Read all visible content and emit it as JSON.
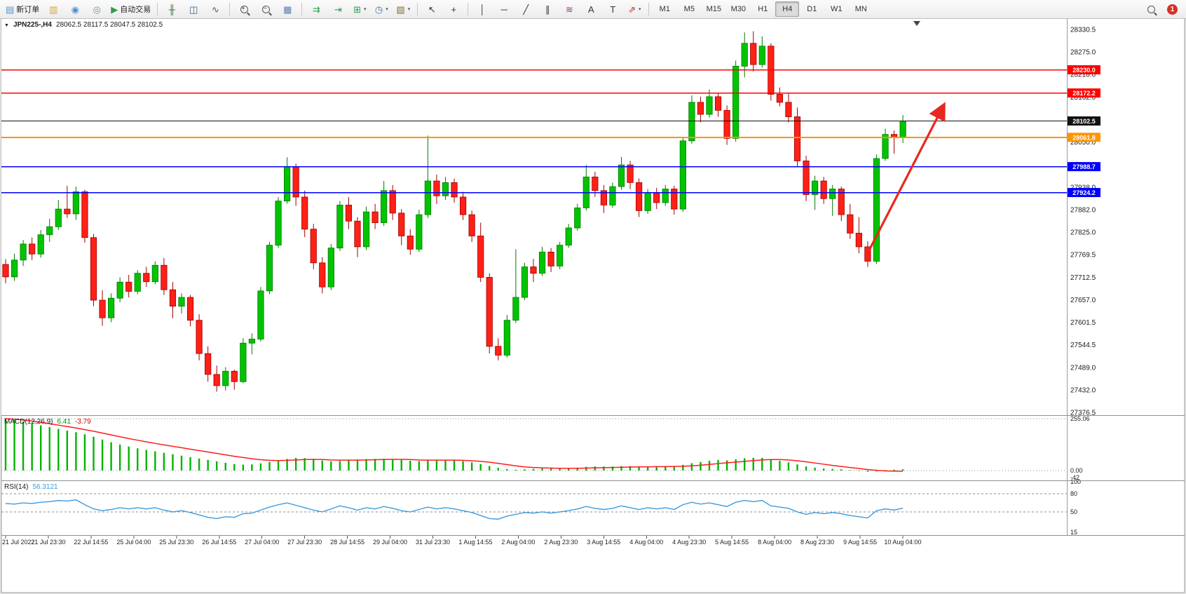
{
  "toolbar": {
    "groups": [
      {
        "name": "trade",
        "items": [
          {
            "name": "new-order",
            "glyph": "▤",
            "color": "#5b8fc9",
            "label": "新订单"
          },
          {
            "name": "charts",
            "glyph": "▥",
            "color": "#d9a43b"
          },
          {
            "name": "community",
            "glyph": "◉",
            "color": "#4a90d2"
          },
          {
            "name": "market-watch",
            "glyph": "◎",
            "color": "#7a8a99"
          },
          {
            "name": "autotrading",
            "glyph": "▶",
            "color": "#2e9e4f",
            "label": "自动交易"
          }
        ]
      },
      {
        "name": "chart-type",
        "items": [
          {
            "name": "bars-chart",
            "glyph": "╫",
            "color": "#3b6e3b"
          },
          {
            "name": "candlestick-chart",
            "glyph": "◫",
            "color": "#3b5b8a"
          },
          {
            "name": "line-chart",
            "glyph": "∿",
            "color": "#3b5b8a"
          }
        ]
      },
      {
        "name": "zoom",
        "items": [
          {
            "name": "zoom-in",
            "type": "mag",
            "sign": "+"
          },
          {
            "name": "zoom-out",
            "type": "mag",
            "sign": "−"
          },
          {
            "name": "tile-windows",
            "glyph": "▦",
            "color": "#5b7fae"
          }
        ]
      },
      {
        "name": "chart-tools",
        "items": [
          {
            "name": "auto-scroll",
            "glyph": "⇉",
            "color": "#2e9e4f"
          },
          {
            "name": "chart-shift",
            "glyph": "⇥",
            "color": "#2e9e4f"
          },
          {
            "name": "new-chart",
            "glyph": "⊞",
            "color": "#2e9e4f",
            "caret": true
          },
          {
            "name": "periods",
            "glyph": "◷",
            "color": "#4a6ea9",
            "caret": true
          },
          {
            "name": "templates",
            "glyph": "▧",
            "color": "#8a6f3b",
            "caret": true
          }
        ]
      },
      {
        "name": "cursor",
        "items": [
          {
            "name": "cursor",
            "glyph": "↖",
            "color": "#333333"
          },
          {
            "name": "crosshair",
            "glyph": "+",
            "color": "#333333"
          }
        ]
      },
      {
        "name": "objects",
        "items": [
          {
            "name": "vertical-line",
            "glyph": "│",
            "color": "#333333"
          },
          {
            "name": "horizontal-line",
            "glyph": "─",
            "color": "#333333"
          },
          {
            "name": "trendline",
            "glyph": "╱",
            "color": "#333333"
          },
          {
            "name": "equidistant-channel",
            "glyph": "∥",
            "color": "#333333"
          },
          {
            "name": "fibonacci",
            "glyph": "≋",
            "color": "#8a3b8a"
          },
          {
            "name": "text",
            "glyph": "A",
            "color": "#333333"
          },
          {
            "name": "text-label",
            "glyph": "T",
            "color": "#333333"
          },
          {
            "name": "arrows",
            "glyph": "⇗",
            "color": "#b03030",
            "caret": true
          }
        ]
      }
    ],
    "timeframes": [
      "M1",
      "M5",
      "M15",
      "M30",
      "H1",
      "H4",
      "D1",
      "W1",
      "MN"
    ],
    "active_timeframe": "H4",
    "right": [
      {
        "name": "search",
        "type": "mag"
      },
      {
        "name": "notifications",
        "type": "badge",
        "text": "1",
        "color": "#d93025"
      }
    ]
  },
  "chart": {
    "one_click_caret": "▼",
    "symbol_label": "JPN225-,H4",
    "ohlc": "28062.5 28117.5 28047.5 28102.5",
    "price_axis": {
      "top_price": 28330.5,
      "bottom_price": 27376.5,
      "labels": [
        "28330.5",
        "28275.0",
        "28218.0",
        "28162.0",
        "28106.5",
        "28050.0",
        "27994.0",
        "27938.0",
        "27882.0",
        "27825.0",
        "27769.5",
        "27712.5",
        "27657.0",
        "27601.5",
        "27544.5",
        "27489.0",
        "27432.0",
        "27376.5"
      ]
    },
    "hlines": [
      {
        "price": 28230.0,
        "label": "28230.0",
        "color": "#ff0000",
        "width": 1.5
      },
      {
        "price": 28172.2,
        "label": "28172.2",
        "color": "#ff0000",
        "width": 1.5
      },
      {
        "price": 28102.5,
        "label": "28102.5",
        "color": "#111111",
        "width": 1
      },
      {
        "price": 28061.8,
        "label": "28061.8",
        "color": "#ff9500",
        "width": 2
      },
      {
        "price": 27988.7,
        "label": "27988.7",
        "color": "#0000ff",
        "width": 1.5
      },
      {
        "price": 27924.2,
        "label": "27924.2",
        "color": "#0000ff",
        "width": 1.5
      }
    ],
    "arrow": {
      "from_bar": 98.2,
      "from_price": 27782,
      "to_bar": 106.6,
      "to_price": 28140
    },
    "time_labels": [
      "21 Jul 2022",
      "21 Jul 23:30",
      "22 Jul 14:55",
      "25 Jul 04:00",
      "25 Jul 23:30",
      "26 Jul 14:55",
      "27 Jul 04:00",
      "27 Jul 23:30",
      "28 Jul 14:55",
      "29 Jul 04:00",
      "31 Jul 23:30",
      "1 Aug 14:55",
      "2 Aug 04:00",
      "2 Aug 23:30",
      "3 Aug 14:55",
      "4 Aug 04:00",
      "4 Aug 23:30",
      "5 Aug 14:55",
      "8 Aug 04:00",
      "8 Aug 23:30",
      "9 Aug 14:55",
      "10 Aug 04:00"
    ],
    "candles": [
      [
        27745,
        27758,
        27698,
        27714
      ],
      [
        27714,
        27772,
        27704,
        27756
      ],
      [
        27756,
        27806,
        27741,
        27796
      ],
      [
        27796,
        27812,
        27756,
        27771
      ],
      [
        27771,
        27831,
        27762,
        27819
      ],
      [
        27819,
        27859,
        27801,
        27839
      ],
      [
        27839,
        27906,
        27831,
        27883
      ],
      [
        27883,
        27941,
        27861,
        27871
      ],
      [
        27871,
        27939,
        27856,
        27926
      ],
      [
        27926,
        27931,
        27799,
        27812
      ],
      [
        27812,
        27821,
        27641,
        27656
      ],
      [
        27656,
        27681,
        27592,
        27612
      ],
      [
        27612,
        27673,
        27601,
        27661
      ],
      [
        27661,
        27713,
        27651,
        27701
      ],
      [
        27701,
        27719,
        27663,
        27678
      ],
      [
        27678,
        27731,
        27671,
        27723
      ],
      [
        27723,
        27739,
        27689,
        27702
      ],
      [
        27702,
        27753,
        27696,
        27743
      ],
      [
        27743,
        27761,
        27669,
        27682
      ],
      [
        27682,
        27701,
        27611,
        27641
      ],
      [
        27641,
        27673,
        27623,
        27663
      ],
      [
        27663,
        27669,
        27591,
        27606
      ],
      [
        27606,
        27621,
        27506,
        27523
      ],
      [
        27523,
        27541,
        27453,
        27471
      ],
      [
        27471,
        27493,
        27428,
        27443
      ],
      [
        27443,
        27489,
        27431,
        27479
      ],
      [
        27479,
        27483,
        27433,
        27453
      ],
      [
        27453,
        27561,
        27449,
        27549
      ],
      [
        27549,
        27573,
        27521,
        27559
      ],
      [
        27559,
        27689,
        27553,
        27679
      ],
      [
        27679,
        27801,
        27671,
        27793
      ],
      [
        27793,
        27913,
        27786,
        27903
      ],
      [
        27903,
        28012,
        27896,
        27989
      ],
      [
        27989,
        27996,
        27891,
        27913
      ],
      [
        27913,
        27929,
        27813,
        27833
      ],
      [
        27833,
        27846,
        27733,
        27749
      ],
      [
        27749,
        27763,
        27673,
        27689
      ],
      [
        27689,
        27796,
        27681,
        27786
      ],
      [
        27786,
        27903,
        27779,
        27893
      ],
      [
        27893,
        27913,
        27833,
        27853
      ],
      [
        27853,
        27863,
        27763,
        27789
      ],
      [
        27789,
        27889,
        27781,
        27876
      ],
      [
        27876,
        27896,
        27833,
        27849
      ],
      [
        27849,
        27953,
        27841,
        27929
      ],
      [
        27929,
        27943,
        27856,
        27873
      ],
      [
        27873,
        27883,
        27793,
        27816
      ],
      [
        27816,
        27833,
        27769,
        27783
      ],
      [
        27783,
        27881,
        27776,
        27869
      ],
      [
        27869,
        28066,
        27861,
        27953
      ],
      [
        27953,
        27969,
        27896,
        27916
      ],
      [
        27916,
        27963,
        27906,
        27949
      ],
      [
        27949,
        27959,
        27899,
        27913
      ],
      [
        27913,
        27926,
        27856,
        27869
      ],
      [
        27869,
        27879,
        27801,
        27816
      ],
      [
        27816,
        27849,
        27701,
        27713
      ],
      [
        27713,
        27723,
        27523,
        27541
      ],
      [
        27541,
        27561,
        27506,
        27519
      ],
      [
        27519,
        27619,
        27513,
        27606
      ],
      [
        27606,
        27783,
        27599,
        27663
      ],
      [
        27663,
        27749,
        27656,
        27739
      ],
      [
        27739,
        27759,
        27701,
        27723
      ],
      [
        27723,
        27789,
        27716,
        27776
      ],
      [
        27776,
        27786,
        27726,
        27741
      ],
      [
        27741,
        27801,
        27733,
        27793
      ],
      [
        27793,
        27846,
        27786,
        27836
      ],
      [
        27836,
        27896,
        27829,
        27886
      ],
      [
        27886,
        27993,
        27879,
        27963
      ],
      [
        27963,
        27976,
        27913,
        27929
      ],
      [
        27929,
        27943,
        27873,
        27893
      ],
      [
        27893,
        27949,
        27886,
        27939
      ],
      [
        27939,
        28013,
        27931,
        27993
      ],
      [
        27993,
        28003,
        27933,
        27949
      ],
      [
        27949,
        27959,
        27863,
        27879
      ],
      [
        27879,
        27933,
        27871,
        27923
      ],
      [
        27923,
        27936,
        27883,
        27899
      ],
      [
        27899,
        27943,
        27891,
        27933
      ],
      [
        27933,
        27941,
        27869,
        27883
      ],
      [
        27883,
        28063,
        27876,
        28053
      ],
      [
        28053,
        28166,
        28046,
        28149
      ],
      [
        28149,
        28163,
        28099,
        28119
      ],
      [
        28119,
        28181,
        28111,
        28163
      ],
      [
        28163,
        28173,
        28113,
        28129
      ],
      [
        28129,
        28141,
        28043,
        28059
      ],
      [
        28059,
        28253,
        28051,
        28239
      ],
      [
        28239,
        28323,
        28211,
        28296
      ],
      [
        28296,
        28326,
        28226,
        28243
      ],
      [
        28243,
        28313,
        28236,
        28289
      ],
      [
        28289,
        28296,
        28153,
        28169
      ],
      [
        28169,
        28186,
        28139,
        28149
      ],
      [
        28149,
        28173,
        28099,
        28113
      ],
      [
        28113,
        28136,
        27989,
        28003
      ],
      [
        28003,
        28016,
        27903,
        27919
      ],
      [
        27919,
        27966,
        27881,
        27953
      ],
      [
        27953,
        27963,
        27896,
        27909
      ],
      [
        27909,
        27943,
        27866,
        27933
      ],
      [
        27933,
        27939,
        27853,
        27869
      ],
      [
        27869,
        27896,
        27809,
        27823
      ],
      [
        27823,
        27863,
        27773,
        27789
      ],
      [
        27789,
        27803,
        27739,
        27753
      ],
      [
        27753,
        28019,
        27746,
        28009
      ],
      [
        28009,
        28083,
        28003,
        28069
      ],
      [
        28069,
        28079,
        28021,
        28062.5
      ],
      [
        28062.5,
        28117.5,
        28047.5,
        28102.5
      ]
    ]
  },
  "macd": {
    "label": "MACD(12,26,9)",
    "value_main": "6.41",
    "value_signal": "-3.79",
    "range": [
      -45,
      265
    ],
    "axis_labels": [
      {
        "text": "255.06",
        "value": 255.06
      },
      {
        "text": "0.00",
        "value": 0
      },
      {
        "text": "-42",
        "value": -42
      }
    ],
    "levels": [
      255.06,
      0
    ],
    "histogram": [
      255,
      248,
      240,
      231,
      222,
      213,
      204,
      196,
      188,
      178,
      166,
      152,
      139,
      128,
      118,
      109,
      101,
      94,
      87,
      80,
      73,
      66,
      59,
      52,
      45,
      38,
      32,
      29,
      30,
      35,
      42,
      50,
      57,
      62,
      61,
      56,
      49,
      45,
      47,
      51,
      54,
      56,
      57,
      58,
      56,
      52,
      48,
      46,
      50,
      52,
      52,
      50,
      46,
      40,
      32,
      22,
      13,
      7,
      4,
      6,
      8,
      10,
      10,
      10,
      12,
      14,
      18,
      20,
      20,
      20,
      22,
      22,
      20,
      20,
      20,
      22,
      22,
      28,
      36,
      42,
      48,
      52,
      50,
      55,
      60,
      62,
      62,
      55,
      48,
      40,
      30,
      20,
      14,
      10,
      8,
      6,
      2,
      -2,
      -6,
      -4,
      2,
      4,
      6.41
    ],
    "signal": [
      255,
      252,
      248,
      243,
      237,
      230,
      223,
      216,
      209,
      201,
      193,
      184,
      175,
      166,
      157,
      149,
      141,
      133,
      126,
      119,
      112,
      105,
      98,
      91,
      84,
      77,
      70,
      64,
      58,
      53,
      50,
      49,
      50,
      52,
      54,
      55,
      54,
      52,
      51,
      51,
      51,
      52,
      53,
      54,
      55,
      55,
      54,
      52,
      51,
      51,
      51,
      51,
      50,
      48,
      45,
      41,
      35,
      29,
      23,
      18,
      15,
      13,
      12,
      11,
      11,
      11,
      12,
      13,
      14,
      15,
      16,
      17,
      18,
      18,
      19,
      19,
      20,
      21,
      23,
      26,
      30,
      34,
      38,
      41,
      45,
      49,
      52,
      54,
      54,
      52,
      48,
      43,
      37,
      31,
      25,
      20,
      15,
      10,
      5,
      1,
      -2,
      -3,
      -3.79
    ]
  },
  "rsi": {
    "label": "RSI(14)",
    "value": "56.3121",
    "range": [
      15,
      100
    ],
    "levels": [
      80,
      50
    ],
    "axis_labels": [
      {
        "text": "100",
        "value": 100
      },
      {
        "text": "80",
        "value": 80
      },
      {
        "text": "50",
        "value": 50
      },
      {
        "text": "15",
        "value": 15
      }
    ],
    "values": [
      64,
      63,
      65,
      64,
      66,
      67,
      69,
      68,
      70,
      62,
      55,
      52,
      54,
      57,
      55,
      57,
      55,
      57,
      53,
      50,
      52,
      49,
      45,
      41,
      39,
      42,
      41,
      47,
      48,
      53,
      58,
      62,
      65,
      61,
      57,
      53,
      50,
      55,
      60,
      57,
      53,
      57,
      55,
      59,
      56,
      52,
      50,
      54,
      58,
      55,
      57,
      55,
      52,
      49,
      44,
      39,
      38,
      43,
      46,
      49,
      48,
      50,
      48,
      50,
      52,
      55,
      59,
      56,
      54,
      56,
      60,
      57,
      54,
      57,
      55,
      57,
      54,
      62,
      66,
      63,
      65,
      62,
      59,
      66,
      69,
      67,
      69,
      60,
      58,
      56,
      50,
      46,
      49,
      47,
      49,
      47,
      44,
      42,
      40,
      52,
      55,
      53,
      56.31
    ]
  },
  "colors": {
    "bull": "#00c400",
    "bull_border": "#007a00",
    "bear": "#ff2016",
    "bear_border": "#9e0000",
    "macd_hist": "#00b400",
    "macd_signal": "#ff1c1c",
    "rsi_line": "#3e9bdd",
    "arrow": "#e8281e",
    "axis_text": "#1a1a1a"
  }
}
